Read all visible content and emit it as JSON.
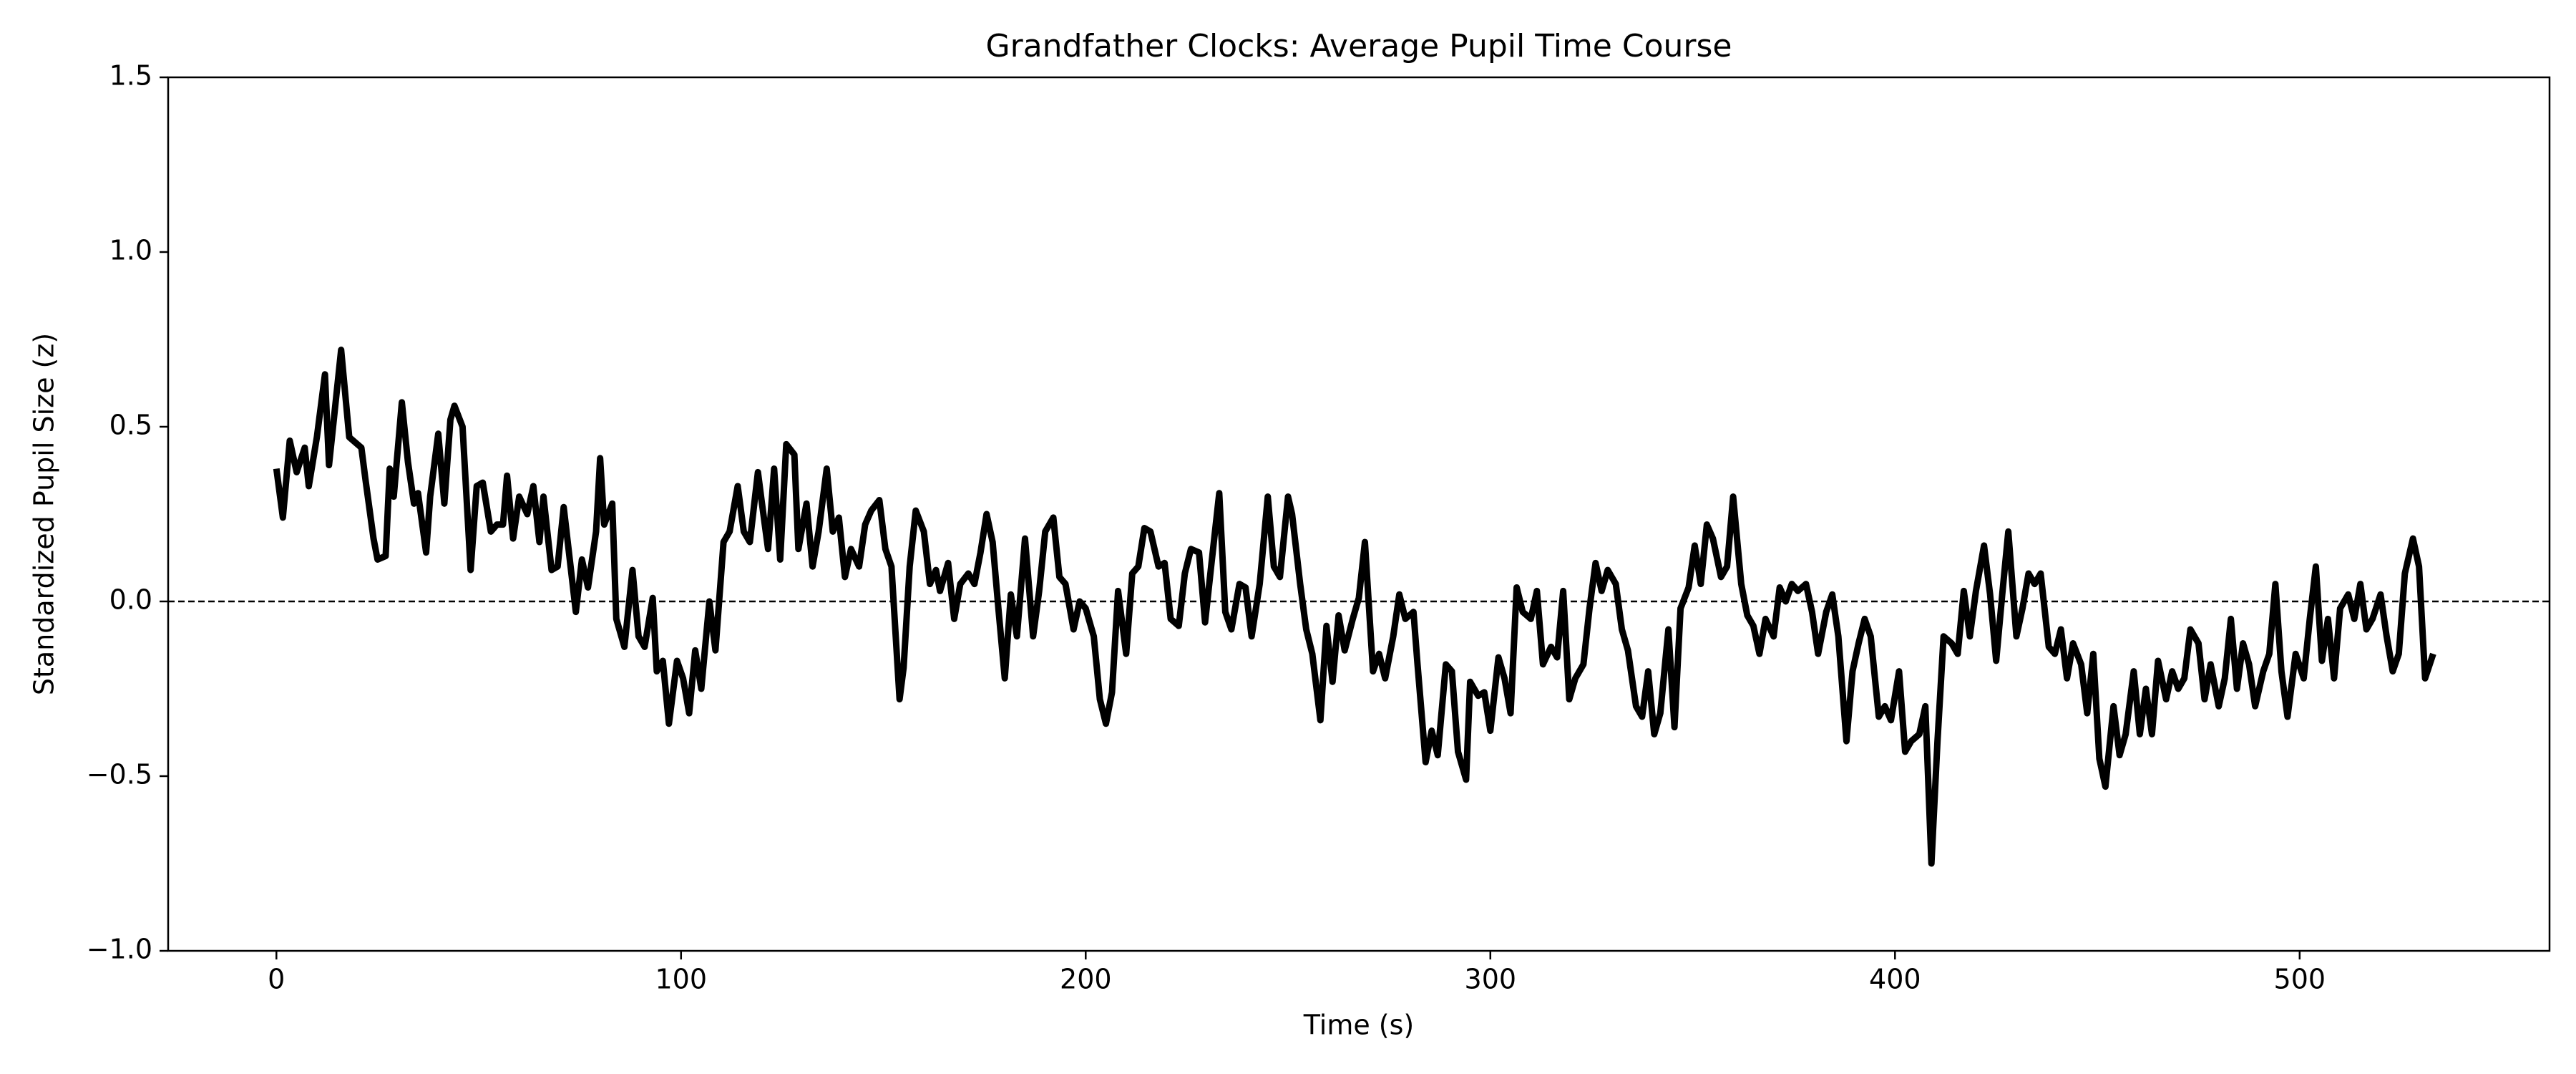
{
  "chart_data": {
    "type": "line",
    "title": "Grandfather Clocks: Average Pupil Time Course",
    "xlabel": "Time (s)",
    "ylabel": "Standardized Pupil Size (z)",
    "color": "#000000",
    "hline": 0,
    "xlim": [
      -26.75,
      561.75
    ],
    "ylim": [
      -1,
      1.5
    ],
    "xticks": [
      0,
      100,
      200,
      300,
      400,
      500
    ],
    "yticks": [
      {
        "value": -1,
        "label": "−1.0"
      },
      {
        "value": -0.5,
        "label": "−0.5"
      },
      {
        "value": 0,
        "label": "0.0"
      },
      0.5,
      {
        "value": 1,
        "label": "1.0"
      },
      1.5
    ],
    "x": [
      0,
      1.6,
      3.3,
      5,
      7,
      8,
      10,
      12,
      13,
      16,
      18,
      21,
      22,
      24,
      25,
      27,
      28,
      29,
      31,
      32.5,
      34,
      35,
      37,
      38,
      40,
      41.5,
      43,
      44,
      46,
      48,
      49.5,
      51,
      53,
      54.5,
      56,
      57,
      58.5,
      60,
      62,
      63.5,
      65,
      66,
      68,
      69.5,
      71,
      72.5,
      74,
      75.5,
      77,
      79,
      80,
      81,
      83,
      84,
      86,
      88,
      89.5,
      91,
      93,
      94,
      95.5,
      97,
      99,
      100.5,
      102,
      103.5,
      105,
      107,
      108.5,
      110.5,
      112,
      114,
      115.5,
      117,
      119,
      120,
      121.5,
      123,
      124.5,
      126,
      128,
      129,
      131,
      132.5,
      134,
      136,
      137.5,
      139,
      140.5,
      142,
      144,
      145.5,
      147,
      149,
      150.5,
      152,
      154,
      155,
      156.5,
      158,
      160,
      161.5,
      163,
      164,
      166,
      167.5,
      169,
      171,
      172.5,
      174,
      175.5,
      177,
      178.5,
      180,
      181.5,
      183,
      185,
      187,
      188.5,
      190,
      192,
      193.5,
      195,
      197,
      198.5,
      200,
      202,
      203.5,
      205,
      206.5,
      208,
      210,
      211.5,
      213,
      214.5,
      216,
      218,
      219.5,
      221,
      223,
      224.5,
      226,
      228,
      229.5,
      231,
      233,
      234.5,
      236,
      238,
      239.5,
      241,
      243,
      245,
      246.5,
      248,
      250,
      251,
      253,
      254.5,
      256,
      258,
      259.5,
      261,
      262.5,
      264,
      266,
      267.5,
      269,
      271,
      272.5,
      274,
      276,
      277.5,
      279,
      281,
      282,
      284,
      285.5,
      287,
      289,
      290.5,
      292,
      294,
      295,
      297,
      298.5,
      300,
      302,
      303.5,
      305,
      306.5,
      308,
      310,
      311.5,
      313,
      315,
      316.5,
      318,
      319.5,
      321,
      323,
      324.5,
      326,
      327.5,
      329,
      331,
      332.5,
      334,
      336,
      337.5,
      339,
      340.5,
      342,
      344,
      345.5,
      347,
      349,
      350.5,
      352,
      353.5,
      355,
      357,
      358.5,
      360,
      362,
      363.5,
      365,
      366.5,
      368,
      370,
      371.5,
      373,
      374.5,
      376,
      378,
      379.5,
      381,
      383,
      384.5,
      386,
      388,
      389.5,
      391,
      392.5,
      394,
      396,
      397.5,
      399,
      401,
      402.5,
      404,
      406,
      407.5,
      409,
      410.5,
      412,
      414,
      415.5,
      417,
      418.5,
      420,
      422,
      423.5,
      425,
      426.5,
      428,
      430,
      431.5,
      433,
      434.5,
      436,
      438,
      439.5,
      441,
      442.5,
      444,
      446,
      447.5,
      449,
      450.5,
      452,
      454,
      455.5,
      457,
      459,
      460.5,
      462,
      463.5,
      465,
      467,
      468.5,
      470,
      471.5,
      473,
      475,
      476.5,
      478,
      480,
      481.5,
      483,
      484.5,
      486,
      487.5,
      489,
      491,
      492.5,
      494,
      495.5,
      497,
      499,
      501,
      502.5,
      504,
      505.5,
      507,
      508.5,
      510,
      512,
      513.5,
      515,
      516.5,
      518,
      520,
      521.5,
      523,
      524.5,
      526,
      528,
      529.5,
      531,
      533
    ],
    "values": [
      0.38,
      0.24,
      0.46,
      0.37,
      0.44,
      0.33,
      0.47,
      0.65,
      0.39,
      0.72,
      0.47,
      0.44,
      0.35,
      0.18,
      0.12,
      0.13,
      0.38,
      0.3,
      0.57,
      0.4,
      0.28,
      0.31,
      0.14,
      0.3,
      0.48,
      0.28,
      0.52,
      0.56,
      0.5,
      0.09,
      0.33,
      0.34,
      0.2,
      0.22,
      0.22,
      0.36,
      0.18,
      0.3,
      0.25,
      0.33,
      0.17,
      0.3,
      0.09,
      0.1,
      0.27,
      0.12,
      -0.03,
      0.12,
      0.04,
      0.2,
      0.41,
      0.22,
      0.28,
      -0.05,
      -0.13,
      0.09,
      -0.1,
      -0.13,
      0.01,
      -0.2,
      -0.17,
      -0.35,
      -0.17,
      -0.22,
      -0.32,
      -0.14,
      -0.25,
      0.0,
      -0.14,
      0.17,
      0.2,
      0.33,
      0.2,
      0.17,
      0.37,
      0.28,
      0.15,
      0.38,
      0.12,
      0.45,
      0.42,
      0.15,
      0.28,
      0.1,
      0.2,
      0.38,
      0.2,
      0.24,
      0.07,
      0.15,
      0.1,
      0.22,
      0.26,
      0.29,
      0.15,
      0.1,
      -0.28,
      -0.19,
      0.1,
      0.26,
      0.2,
      0.05,
      0.09,
      0.03,
      0.11,
      -0.05,
      0.05,
      0.08,
      0.05,
      0.14,
      0.25,
      0.17,
      -0.03,
      -0.22,
      0.02,
      -0.1,
      0.18,
      -0.1,
      0.03,
      0.2,
      0.24,
      0.07,
      0.05,
      -0.08,
      0.0,
      -0.02,
      -0.1,
      -0.28,
      -0.35,
      -0.26,
      0.03,
      -0.15,
      0.08,
      0.1,
      0.21,
      0.2,
      0.1,
      0.11,
      -0.05,
      -0.07,
      0.08,
      0.15,
      0.14,
      -0.06,
      0.1,
      0.31,
      -0.03,
      -0.08,
      0.05,
      0.04,
      -0.1,
      0.05,
      0.3,
      0.1,
      0.07,
      0.3,
      0.25,
      0.05,
      -0.08,
      -0.15,
      -0.34,
      -0.07,
      -0.23,
      -0.04,
      -0.14,
      -0.05,
      0.01,
      0.17,
      -0.2,
      -0.15,
      -0.22,
      -0.1,
      0.02,
      -0.05,
      -0.03,
      -0.18,
      -0.46,
      -0.37,
      -0.44,
      -0.18,
      -0.2,
      -0.43,
      -0.51,
      -0.23,
      -0.27,
      -0.26,
      -0.37,
      -0.16,
      -0.22,
      -0.32,
      0.04,
      -0.03,
      -0.05,
      0.03,
      -0.18,
      -0.13,
      -0.16,
      0.03,
      -0.28,
      -0.22,
      -0.18,
      -0.02,
      0.11,
      0.03,
      0.09,
      0.05,
      -0.08,
      -0.14,
      -0.3,
      -0.33,
      -0.2,
      -0.38,
      -0.32,
      -0.08,
      -0.36,
      -0.02,
      0.04,
      0.16,
      0.05,
      0.22,
      0.18,
      0.07,
      0.1,
      0.3,
      0.05,
      -0.04,
      -0.07,
      -0.15,
      -0.05,
      -0.1,
      0.04,
      0.0,
      0.05,
      0.03,
      0.05,
      -0.03,
      -0.15,
      -0.03,
      0.02,
      -0.1,
      -0.4,
      -0.2,
      -0.12,
      -0.05,
      -0.1,
      -0.33,
      -0.3,
      -0.34,
      -0.2,
      -0.43,
      -0.4,
      -0.38,
      -0.3,
      -0.75,
      -0.4,
      -0.1,
      -0.12,
      -0.15,
      0.03,
      -0.1,
      0.03,
      0.16,
      0.02,
      -0.17,
      0.02,
      0.2,
      -0.1,
      -0.02,
      0.08,
      0.05,
      0.08,
      -0.13,
      -0.15,
      -0.08,
      -0.22,
      -0.12,
      -0.18,
      -0.32,
      -0.15,
      -0.45,
      -0.53,
      -0.3,
      -0.44,
      -0.38,
      -0.2,
      -0.38,
      -0.25,
      -0.38,
      -0.17,
      -0.28,
      -0.2,
      -0.25,
      -0.22,
      -0.08,
      -0.12,
      -0.28,
      -0.18,
      -0.3,
      -0.22,
      -0.05,
      -0.25,
      -0.12,
      -0.18,
      -0.3,
      -0.2,
      -0.15,
      0.05,
      -0.2,
      -0.33,
      -0.15,
      -0.22,
      -0.05,
      0.1,
      -0.17,
      -0.05,
      -0.22,
      -0.02,
      0.02,
      -0.05,
      0.05,
      -0.08,
      -0.05,
      0.02,
      -0.1,
      -0.2,
      -0.15,
      0.08,
      0.18,
      0.1,
      -0.22,
      -0.15
    ]
  }
}
